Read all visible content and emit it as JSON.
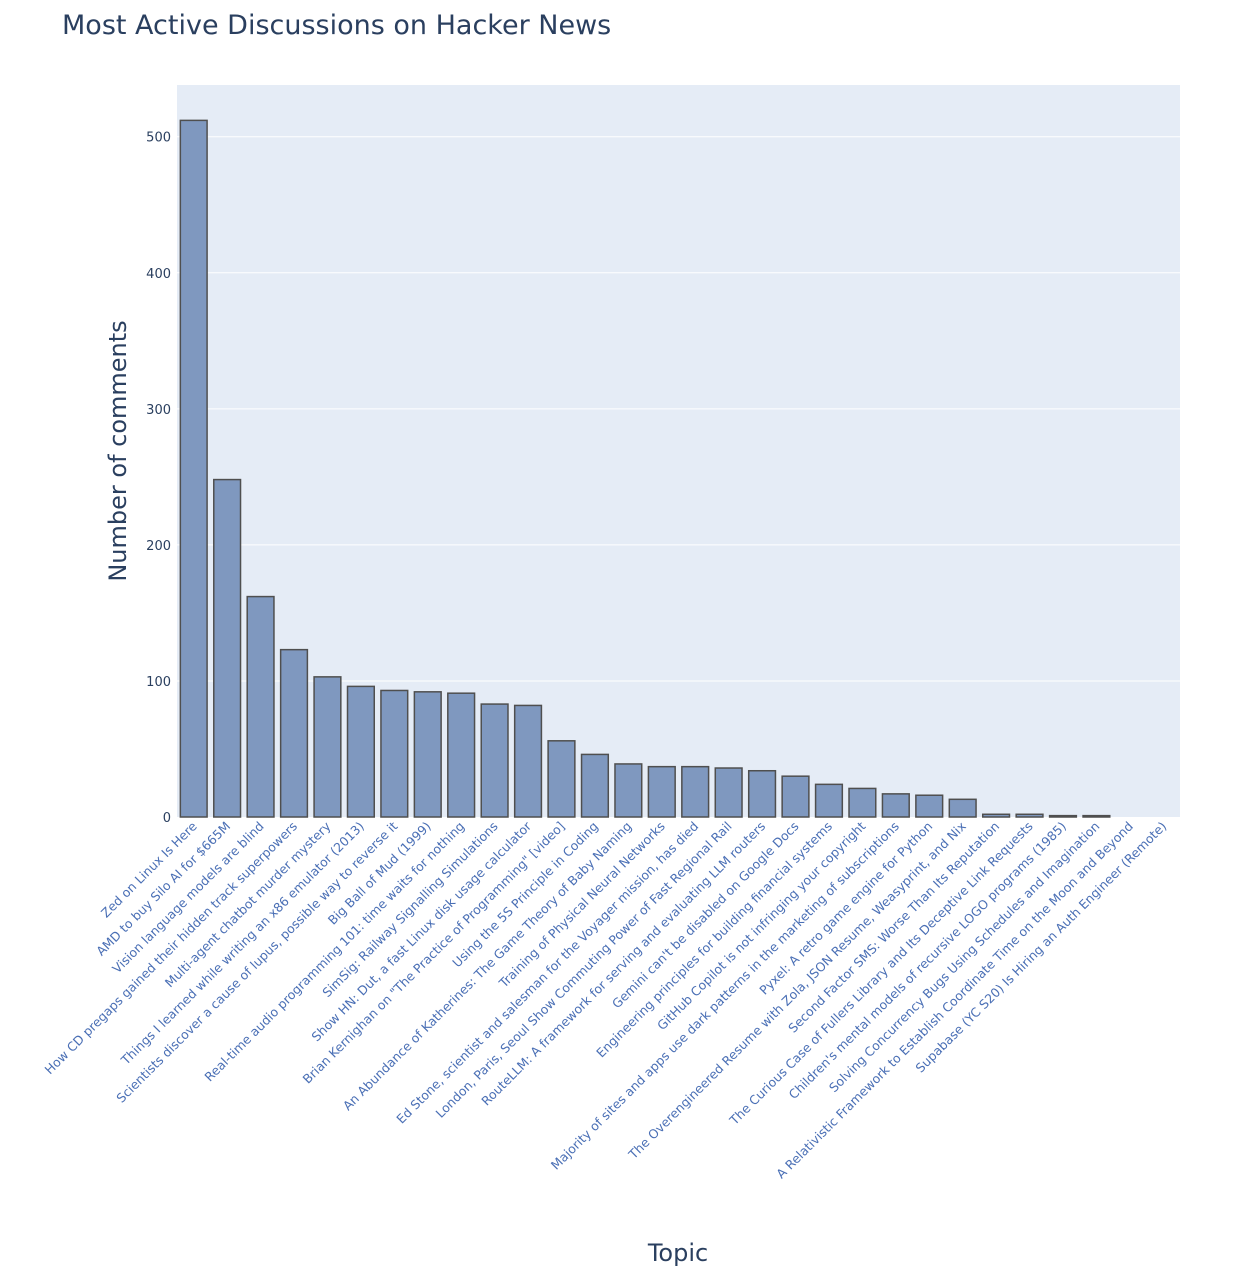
{
  "chart_data": {
    "type": "bar",
    "title": "Most Active Discussions on Hacker News",
    "xlabel": "Topic",
    "ylabel": "Number of comments",
    "ylim": [
      0,
      538
    ],
    "yticks": [
      0,
      100,
      200,
      300,
      400,
      500
    ],
    "grid": true,
    "colors": {
      "bar_fill": "#7f98bf",
      "bar_outline": "#4f4f4f",
      "plot_bg": "#e5ecf6",
      "text": "#2a3f5f",
      "tick_label": "#4a6fb5"
    },
    "categories": [
      "Zed on Linux Is Here",
      "AMD to buy Silo AI for $665M",
      "Vision language models are blind",
      "How CD pregaps gained their hidden track superpowers",
      "Multi-agent chatbot murder mystery",
      "Things I learned while writing an x86 emulator (2013)",
      "Scientists discover a cause of lupus, possible way to reverse it",
      "Big Ball of Mud (1999)",
      "Real-time audio programming 101: time waits for nothing",
      "SimSig: Railway Signalling Simulations",
      "Show HN: Dut, a fast Linux disk usage calculator",
      "Brian Kernighan on \"The Practice of Programming\" [video]",
      "Using the 5S Principle in Coding",
      "An Abundance of Katherines: The Game Theory of Baby Naming",
      "Training of Physical Neural Networks",
      "Ed Stone, scientist and salesman for the Voyager mission, has died",
      "London, Paris, Seoul Show Commuting Power of Fast Regional Rail",
      "RouteLLM: A framework for serving and evaluating LLM routers",
      "Gemini can't be disabled on Google Docs",
      "Engineering principles for building financial systems",
      "GitHub Copilot is not infringing your copyright",
      "Majority of sites and apps use dark patterns in the marketing of subscriptions",
      "Pyxel: A retro game engine for Python",
      "The Overengineered Resume with Zola, JSON Resume, Weasyprint, and Nix",
      "Second Factor SMS: Worse Than Its Reputation",
      "The Curious Case of Fullers Library and Its Deceptive Link Requests",
      "Children's mental models of recursive LOGO programs (1985)",
      "Solving Concurrency Bugs Using Schedules and Imagination",
      "A Relativistic Framework to Establish Coordinate Time on the Moon and Beyond",
      "Supabase (YC S20) Is Hiring an Auth Engineer (Remote)"
    ],
    "values": [
      512,
      248,
      162,
      123,
      103,
      96,
      93,
      92,
      91,
      83,
      82,
      56,
      46,
      39,
      37,
      37,
      36,
      34,
      30,
      24,
      21,
      17,
      16,
      13,
      2,
      2,
      1,
      1,
      0,
      0
    ]
  }
}
